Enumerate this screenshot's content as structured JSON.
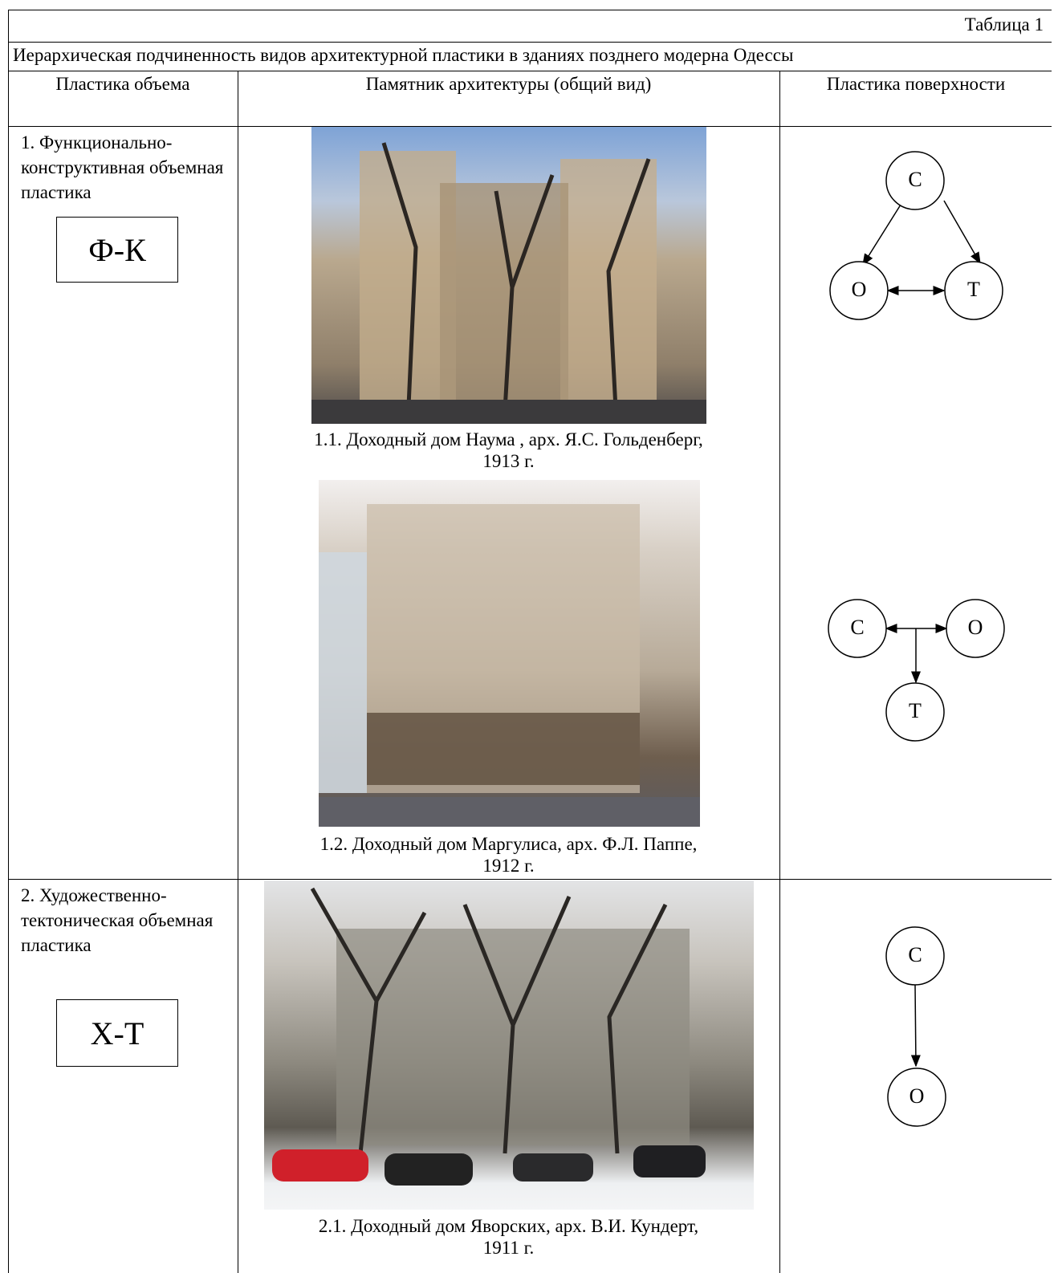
{
  "table": {
    "label": "Таблица 1",
    "caption": "Иерархическая подчиненность видов архитектурной пластики в зданиях позднего модерна Одессы",
    "headers": [
      "Пластика объема",
      "Памятник архитектуры (общий вид)",
      "Пластика поверхности"
    ],
    "rows": [
      {
        "volume": "1.  Функционально-конструктивная объемная пластика",
        "code": "Ф-К",
        "monuments": [
          [
            "1.1. Доходный дом Наума , арх. Я.С. Гольденберг,",
            "1913 г."
          ],
          [
            "1.2. Доходный дом Маргулиса, арх. Ф.Л. Паппе,",
            "1912 г."
          ]
        ],
        "diagrams": [
          [
            "С",
            "О",
            "Т"
          ],
          [
            "С",
            "О",
            "Т"
          ]
        ]
      },
      {
        "volume": "2.  Художественно-тектоническая объемная пластика",
        "code": "Х-Т",
        "monuments": [
          [
            "2.1. Доходный дом Яворских, арх.  В.И. Кундерт,",
            "1911 г."
          ]
        ],
        "diagrams": [
          [
            "С",
            "О"
          ]
        ]
      }
    ]
  }
}
